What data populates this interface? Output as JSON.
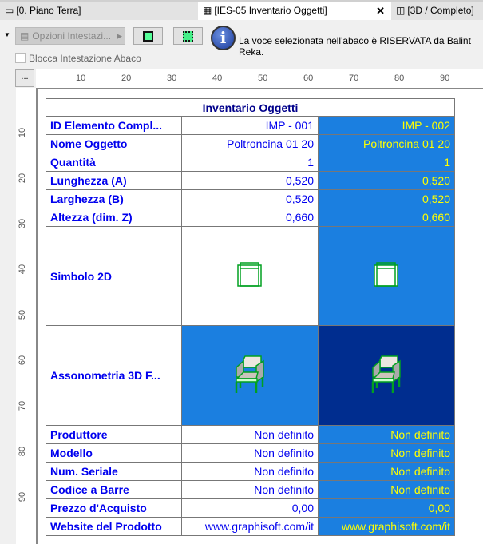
{
  "tabs": [
    {
      "label": "[0. Piano Terra]",
      "icon": "floor-plan-icon"
    },
    {
      "label": "[IES-05 Inventario Oggetti]",
      "icon": "schedule-grid-icon",
      "active": true
    },
    {
      "label": "[3D / Completo]",
      "icon": "3d-window-icon"
    }
  ],
  "toolbar": {
    "header_options": "Opzioni Intestazi...",
    "info": "La voce selezionata nell'abaco è RISERVATA da Balint Reka.",
    "lock_header": "Blocca Intestazione Abaco",
    "corner": "..."
  },
  "ruler": {
    "h": [
      "10",
      "20",
      "30",
      "40",
      "50",
      "60",
      "70",
      "80",
      "90"
    ],
    "v": [
      "10",
      "20",
      "30",
      "40",
      "50",
      "60",
      "70",
      "80",
      "90"
    ]
  },
  "table": {
    "title": "Inventario Oggetti",
    "rows": [
      {
        "label": "ID Elemento Compl...",
        "v1": "IMP - 001",
        "v2": "IMP - 002"
      },
      {
        "label": "Nome Oggetto",
        "v1": "Poltroncina 01 20",
        "v2": "Poltroncina 01 20"
      },
      {
        "label": "Quantità",
        "v1": "1",
        "v2": "1"
      },
      {
        "label": "Lunghezza (A)",
        "v1": "0,520",
        "v2": "0,520"
      },
      {
        "label": "Larghezza (B)",
        "v1": "0,520",
        "v2": "0,520"
      },
      {
        "label": "Altezza (dim. Z)",
        "v1": "0,660",
        "v2": "0,660"
      }
    ],
    "symbol_label": "Simbolo 2D",
    "axo_label": "Assonometria 3D F...",
    "rows2": [
      {
        "label": "Produttore",
        "v1": "Non definito",
        "v2": "Non definito"
      },
      {
        "label": "Modello",
        "v1": "Non definito",
        "v2": "Non definito"
      },
      {
        "label": "Num. Seriale",
        "v1": "Non definito",
        "v2": "Non definito"
      },
      {
        "label": "Codice a Barre",
        "v1": "Non definito",
        "v2": "Non definito"
      },
      {
        "label": "Prezzo d'Acquisto",
        "v1": "0,00",
        "v2": "0,00"
      },
      {
        "label": "Website del Prodotto",
        "v1": "www.graphisoft.com/it",
        "v2": "www.graphisoft.com/it"
      }
    ]
  },
  "colors": {
    "selected": "#1b7fe0",
    "selected_dark": "#002d8f",
    "label": "#0000ee",
    "selected_text": "#ffff00"
  }
}
